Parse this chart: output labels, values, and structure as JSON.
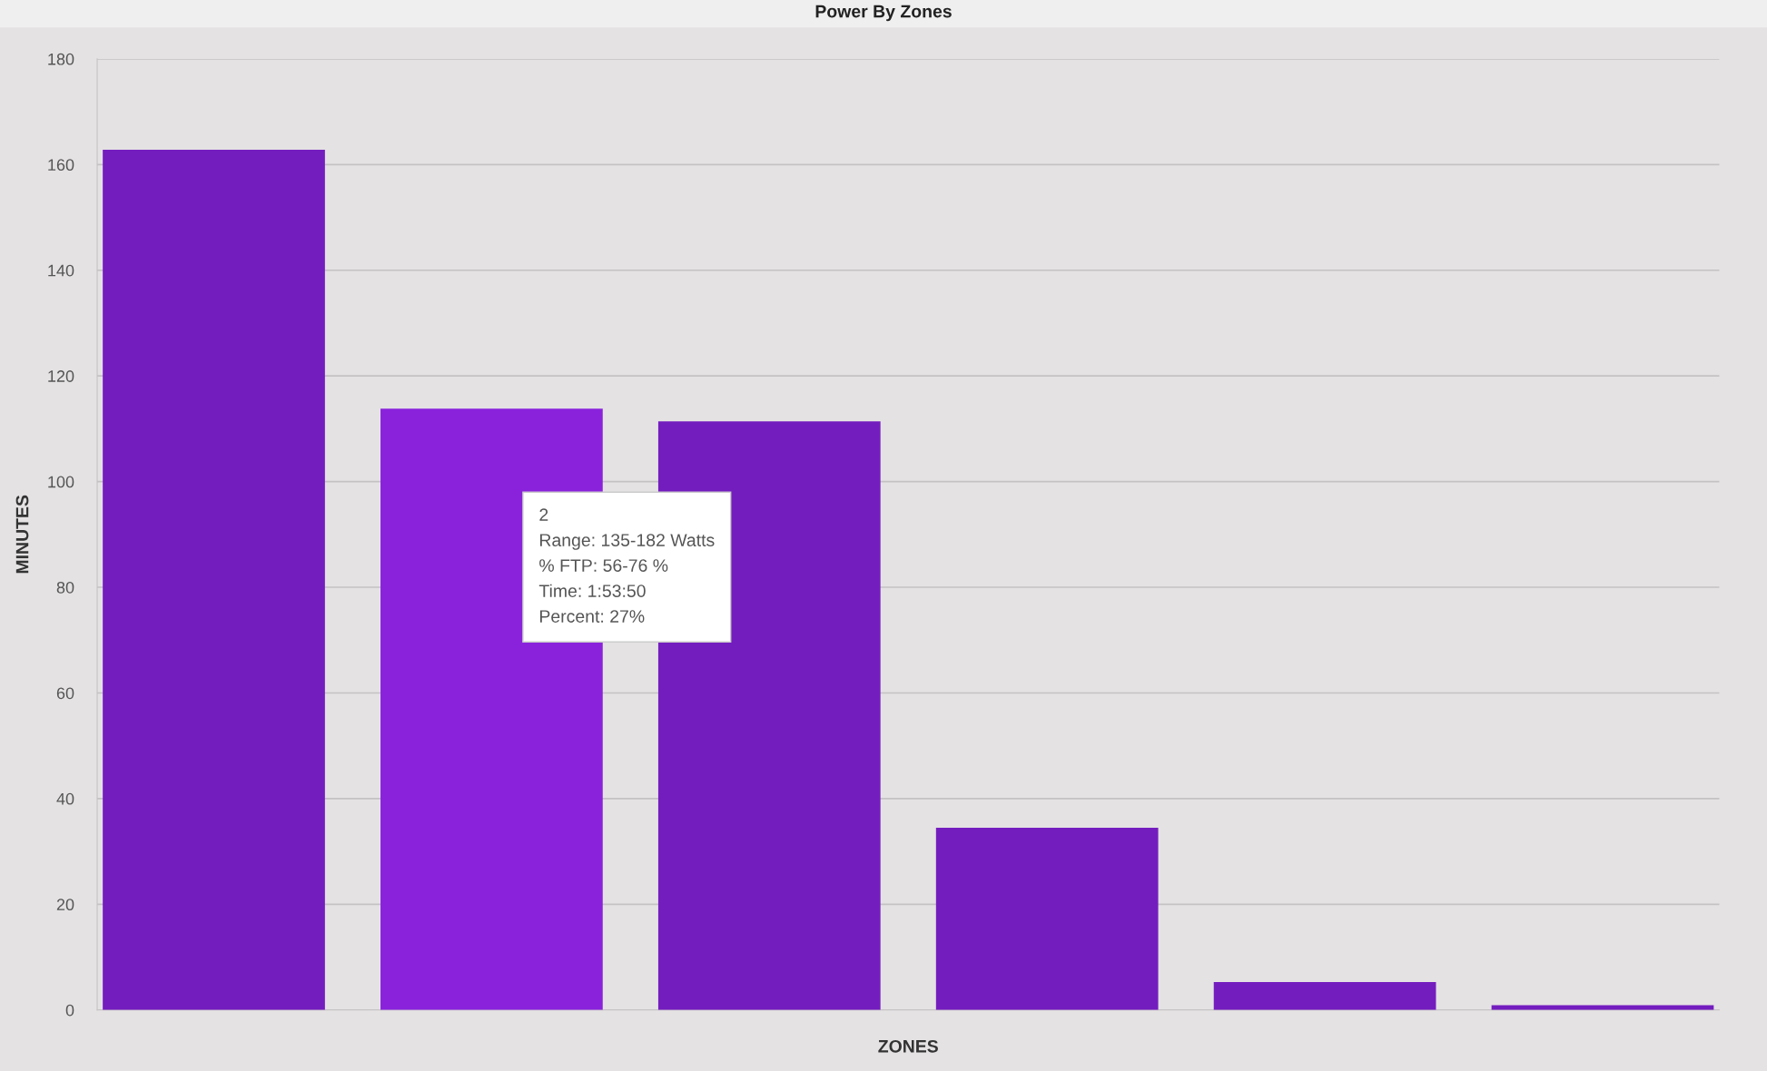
{
  "chart_data": {
    "type": "bar",
    "title": "Power By Zones",
    "xlabel": "ZONES",
    "ylabel": "MINUTES",
    "categories": [
      null,
      null,
      null,
      null,
      null,
      null
    ],
    "values": [
      162.8,
      113.8,
      111.4,
      34.5,
      5.3,
      0.9
    ],
    "colors": [
      "#741dbf",
      "#8a22dc",
      "#741dbf",
      "#741dbf",
      "#741dbf",
      "#741dbf"
    ],
    "ylim": [
      0,
      180
    ],
    "yticks": [
      0,
      20,
      40,
      60,
      80,
      100,
      120,
      140,
      160,
      180
    ],
    "grid": "y",
    "legend": false,
    "annotations": [
      "2\nRange: 135-182 Watts\n% FTP: 56-76 %\nTime: 1:53:50\nPercent: 27%"
    ]
  }
}
